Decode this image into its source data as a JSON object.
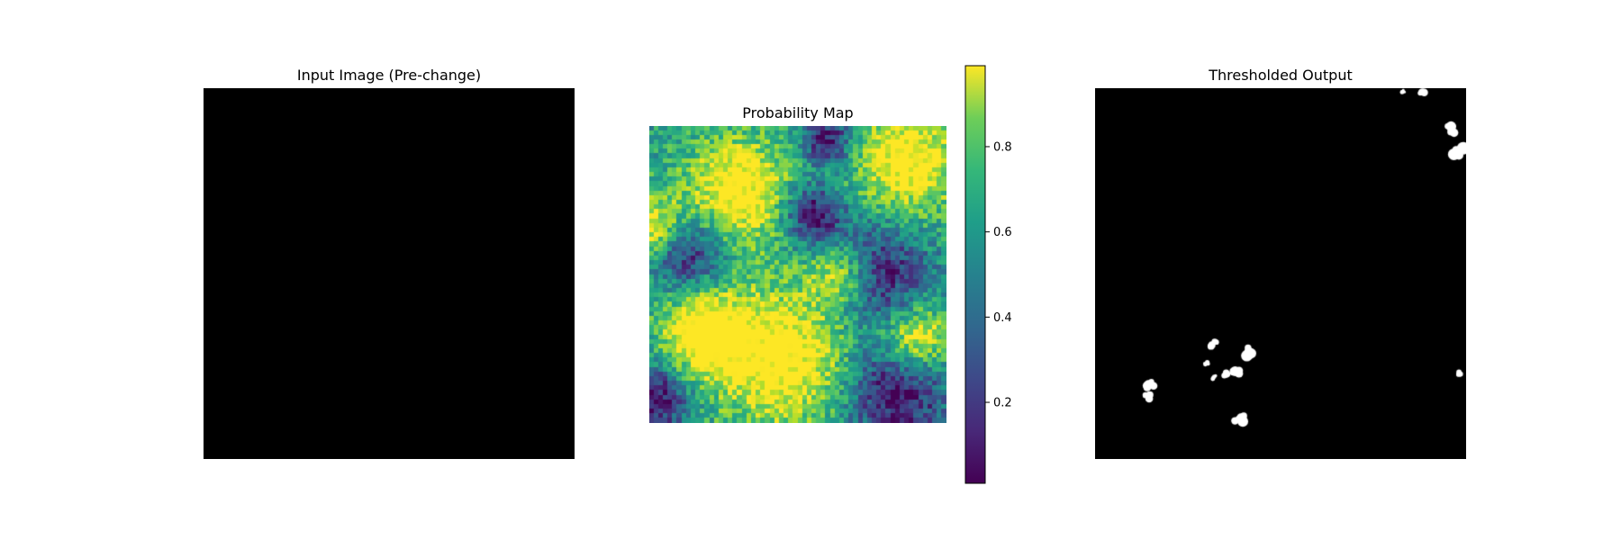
{
  "panels": {
    "input": {
      "title": "Input Image (Pre-change)"
    },
    "probability": {
      "title": "Probability Map"
    },
    "thresholded": {
      "title": "Thresholded Output"
    }
  },
  "colors": {
    "background": "#ffffff",
    "input_fill": "#000000",
    "threshold_on": "#ffffff",
    "threshold_off": "#000000"
  },
  "chart_data": [
    {
      "type": "heatmap",
      "title": "Input Image (Pre-change)",
      "fill": "uniform black",
      "axes": "off"
    },
    {
      "type": "heatmap",
      "title": "Probability Map",
      "colormap": "viridis",
      "grid_size": [
        64,
        64
      ],
      "value_range": [
        0.01,
        0.99
      ],
      "high_regions": [
        "upper-left",
        "upper-right",
        "lower-center",
        "left edge"
      ],
      "low_regions": [
        "center-right",
        "lower-right",
        "lower-left corner",
        "mid-left"
      ],
      "colorbar": {
        "ticks": [
          0.2,
          0.4,
          0.6,
          0.8
        ],
        "tick_labels": [
          "0.2",
          "0.4",
          "0.6",
          "0.8"
        ],
        "range": [
          0.01,
          0.99
        ]
      },
      "axes": "off"
    },
    {
      "type": "heatmap",
      "title": "Thresholded Output",
      "colormap": "binary",
      "threshold_blobs": [
        {
          "x": 0.83,
          "y": 0.01
        },
        {
          "x": 0.88,
          "y": 0.01
        },
        {
          "x": 0.96,
          "y": 0.11
        },
        {
          "x": 0.98,
          "y": 0.17
        },
        {
          "x": 0.3,
          "y": 0.74
        },
        {
          "x": 0.35,
          "y": 0.77
        },
        {
          "x": 0.38,
          "y": 0.76
        },
        {
          "x": 0.41,
          "y": 0.71
        },
        {
          "x": 0.32,
          "y": 0.78
        },
        {
          "x": 0.14,
          "y": 0.83
        },
        {
          "x": 0.15,
          "y": 0.8
        },
        {
          "x": 0.39,
          "y": 0.89
        },
        {
          "x": 0.98,
          "y": 0.77
        },
        {
          "x": 0.32,
          "y": 0.69
        }
      ],
      "axes": "off"
    }
  ]
}
